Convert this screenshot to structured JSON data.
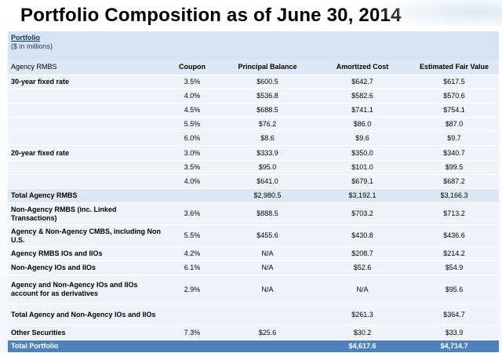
{
  "title": "Portfolio Composition as of June 30, 2014",
  "header": {
    "label": "Portfolio",
    "units": "($ in millions)"
  },
  "columns": [
    "Agency RMBS",
    "Coupon",
    "Principal Balance",
    "Amortized Cost",
    "Estimated Fair Value"
  ],
  "rows": [
    {
      "label": "30-year fixed rate",
      "coupon": "3.5%",
      "principal": "$600.5",
      "amortized": "$642.7",
      "fair": "$617.5"
    },
    {
      "label": "",
      "coupon": "4.0%",
      "principal": "$536.8",
      "amortized": "$582.6",
      "fair": "$570.6"
    },
    {
      "label": "",
      "coupon": "4.5%",
      "principal": "$688.5",
      "amortized": "$741.1",
      "fair": "$754.1"
    },
    {
      "label": "",
      "coupon": "5.5%",
      "principal": "$76.2",
      "amortized": "$86.0",
      "fair": "$87.0"
    },
    {
      "label": "",
      "coupon": "6.0%",
      "principal": "$8.6",
      "amortized": "$9.6",
      "fair": "$9.7"
    },
    {
      "label": "20-year fixed rate",
      "coupon": "3.0%",
      "principal": "$333.9",
      "amortized": "$350.0",
      "fair": "$340.7"
    },
    {
      "label": "",
      "coupon": "3.5%",
      "principal": "$95.0",
      "amortized": "$101.0",
      "fair": "$99.5"
    },
    {
      "label": "",
      "coupon": "4.0%",
      "principal": "$641.0",
      "amortized": "$679.1",
      "fair": "$687.2"
    },
    {
      "label": "Total Agency RMBS",
      "coupon": "",
      "principal": "$2,980.5",
      "amortized": "$3,192.1",
      "fair": "$3,166.3"
    },
    {
      "label": "Non-Agency RMBS (inc. Linked Transactions)",
      "coupon": "3.6%",
      "principal": "$888.5",
      "amortized": "$703.2",
      "fair": "$713.2"
    },
    {
      "label": "Agency & Non-Agency CMBS, including Non U.S.",
      "coupon": "5.5%",
      "principal": "$455.6",
      "amortized": "$430.8",
      "fair": "$436.6"
    },
    {
      "label": "Agency RMBS IOs and IIOs",
      "coupon": "4.2%",
      "principal": "N/A",
      "amortized": "$208.7",
      "fair": "$214.2"
    },
    {
      "label": "Non-Agency IOs and IIOs",
      "coupon": "6.1%",
      "principal": "N/A",
      "amortized": "$52.6",
      "fair": "$54.9"
    },
    {
      "label": "Agency and Non-Agency IOs and IIOs account for as derivatives",
      "coupon": "2.9%",
      "principal": "N/A",
      "amortized": "N/A",
      "fair": "$95.6"
    },
    {
      "label": "Total Agency and Non-Agency IOs and IIOs",
      "coupon": "",
      "principal": "",
      "amortized": "$261.3",
      "fair": "$364.7"
    },
    {
      "label": "Other Securities",
      "coupon": "7.3%",
      "principal": "$25.6",
      "amortized": "$30.2",
      "fair": "$33.9"
    },
    {
      "label": "Total Portfolio",
      "coupon": "",
      "principal": "",
      "amortized": "$4,617.6",
      "fair": "$4,714.7"
    }
  ]
}
